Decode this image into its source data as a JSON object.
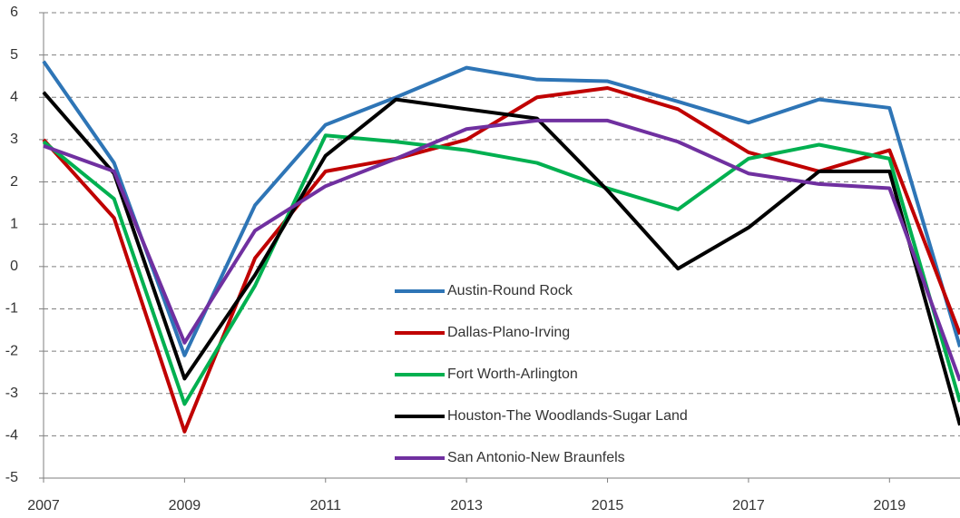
{
  "chart_data": {
    "type": "line",
    "x": [
      2007,
      2008,
      2009,
      2010,
      2011,
      2012,
      2013,
      2014,
      2015,
      2016,
      2017,
      2018,
      2019,
      2020
    ],
    "xlim": [
      2007,
      2020
    ],
    "xticks": [
      2007,
      2009,
      2011,
      2013,
      2015,
      2017,
      2019
    ],
    "ylim": [
      -5,
      6
    ],
    "yticks": [
      -5,
      -4,
      -3,
      -2,
      -1,
      0,
      1,
      2,
      3,
      4,
      5,
      6
    ],
    "grid": true,
    "legend": "lower center",
    "series": [
      {
        "name": "Austin-Round Rock",
        "color": "#2e75b6",
        "values": [
          4.85,
          2.45,
          -2.1,
          1.45,
          3.35,
          4.0,
          4.7,
          4.42,
          4.38,
          3.9,
          3.4,
          3.95,
          3.75,
          -1.9
        ]
      },
      {
        "name": "Dallas-Plano-Irving",
        "color": "#c00000",
        "values": [
          3.0,
          1.15,
          -3.9,
          0.2,
          2.25,
          2.55,
          3.0,
          4.0,
          4.22,
          3.72,
          2.7,
          2.25,
          2.75,
          -1.6
        ]
      },
      {
        "name": "Fort Worth-Arlington",
        "color": "#00b050",
        "values": [
          2.95,
          1.6,
          -3.25,
          -0.45,
          3.1,
          2.95,
          2.75,
          2.45,
          1.85,
          1.35,
          2.55,
          2.88,
          2.55,
          -3.2
        ]
      },
      {
        "name": "Houston-The Woodlands-Sugar Land",
        "color": "#000000",
        "values": [
          4.12,
          2.2,
          -2.65,
          -0.2,
          2.62,
          3.95,
          3.72,
          3.5,
          1.8,
          -0.05,
          0.92,
          2.25,
          2.25,
          -3.75
        ]
      },
      {
        "name": "San Antonio-New Braunfels",
        "color": "#7030a0",
        "values": [
          2.85,
          2.25,
          -1.8,
          0.85,
          1.9,
          2.55,
          3.25,
          3.45,
          3.45,
          2.95,
          2.2,
          1.95,
          1.85,
          -2.7
        ]
      }
    ]
  }
}
